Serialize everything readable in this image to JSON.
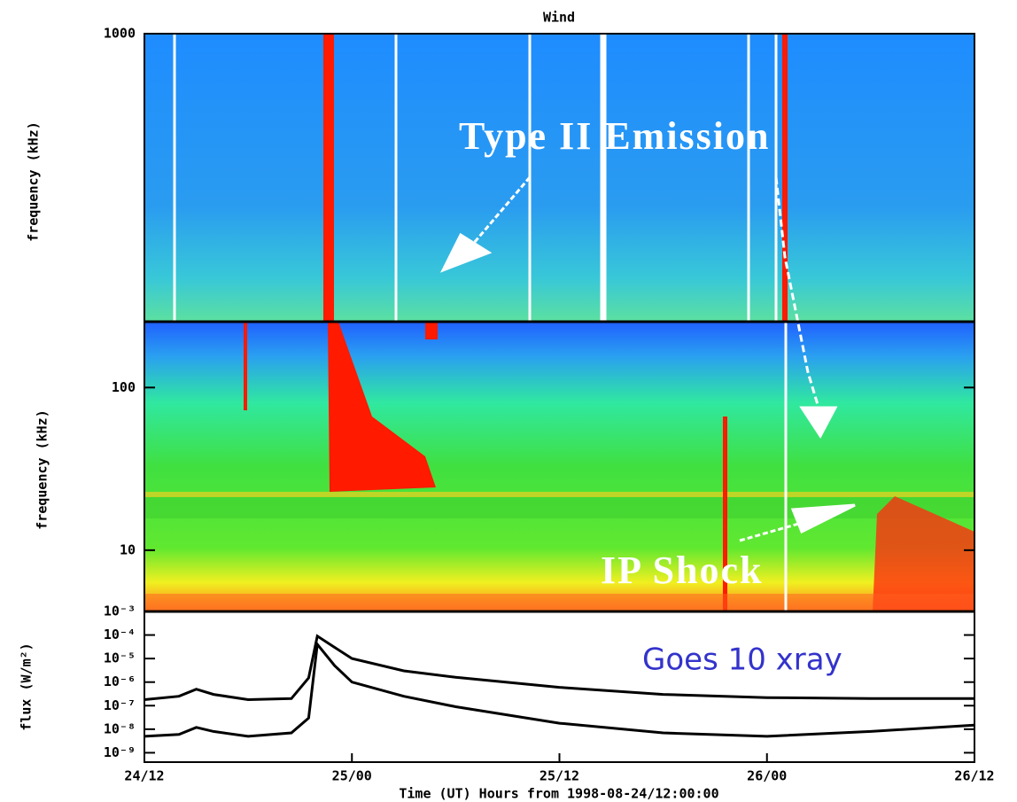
{
  "chart_data": [
    {
      "type": "spectrogram",
      "title": "Wind",
      "ylabel": "frequency (kHz)",
      "log_y": true,
      "ylim": [
        250,
        1000
      ],
      "yticks": [
        1000
      ],
      "annotation": "Type II Emission"
    },
    {
      "type": "spectrogram",
      "ylabel": "frequency (kHz)",
      "log_y": true,
      "ylim": [
        4.2,
        254
      ],
      "yticks": [
        10,
        100
      ],
      "annotation": "IP Shock"
    },
    {
      "type": "line",
      "ylabel": "flux (W/m²)",
      "xlabel": "Time (UT) Hours from 1998-08-24/12:00:00",
      "annotation": "Goes 10 xray",
      "log_y": true,
      "xlim": [
        0,
        48
      ],
      "xticks": [
        {
          "value": 0,
          "label": "24/12"
        },
        {
          "value": 12,
          "label": "25/00"
        },
        {
          "value": 24,
          "label": "25/12"
        },
        {
          "value": 36,
          "label": "26/00"
        },
        {
          "value": 48,
          "label": "26/12"
        }
      ],
      "ylim": [
        4e-10,
        0.001
      ],
      "yticks": [
        {
          "value": 0.001,
          "label": "10⁻³"
        },
        {
          "value": 0.0001,
          "label": "10⁻⁴"
        },
        {
          "value": 1e-05,
          "label": "10⁻⁵"
        },
        {
          "value": 1e-06,
          "label": "10⁻⁶"
        },
        {
          "value": 1e-07,
          "label": "10⁻⁷"
        },
        {
          "value": 1e-08,
          "label": "10⁻⁸"
        },
        {
          "value": 1e-09,
          "label": "10⁻⁹"
        }
      ],
      "x": [
        0,
        2,
        3,
        4,
        6,
        8.5,
        9.5,
        10,
        11,
        12,
        15,
        18,
        24,
        30,
        36,
        42,
        48
      ],
      "series": [
        {
          "color": "#000000",
          "values": [
            1.8e-07,
            2.5e-07,
            5e-07,
            3e-07,
            1.8e-07,
            2e-07,
            1.5e-06,
            9e-05,
            3e-05,
            1e-05,
            3e-06,
            1.6e-06,
            6e-07,
            3e-07,
            2.2e-07,
            2e-07,
            2e-07
          ]
        },
        {
          "color": "#000000",
          "values": [
            5e-09,
            6e-09,
            1.2e-08,
            8e-09,
            5e-09,
            7e-09,
            3e-08,
            4e-05,
            5e-06,
            1e-06,
            2.5e-07,
            9e-08,
            1.8e-08,
            7e-09,
            5e-09,
            8e-09,
            1.5e-08
          ]
        }
      ]
    }
  ]
}
